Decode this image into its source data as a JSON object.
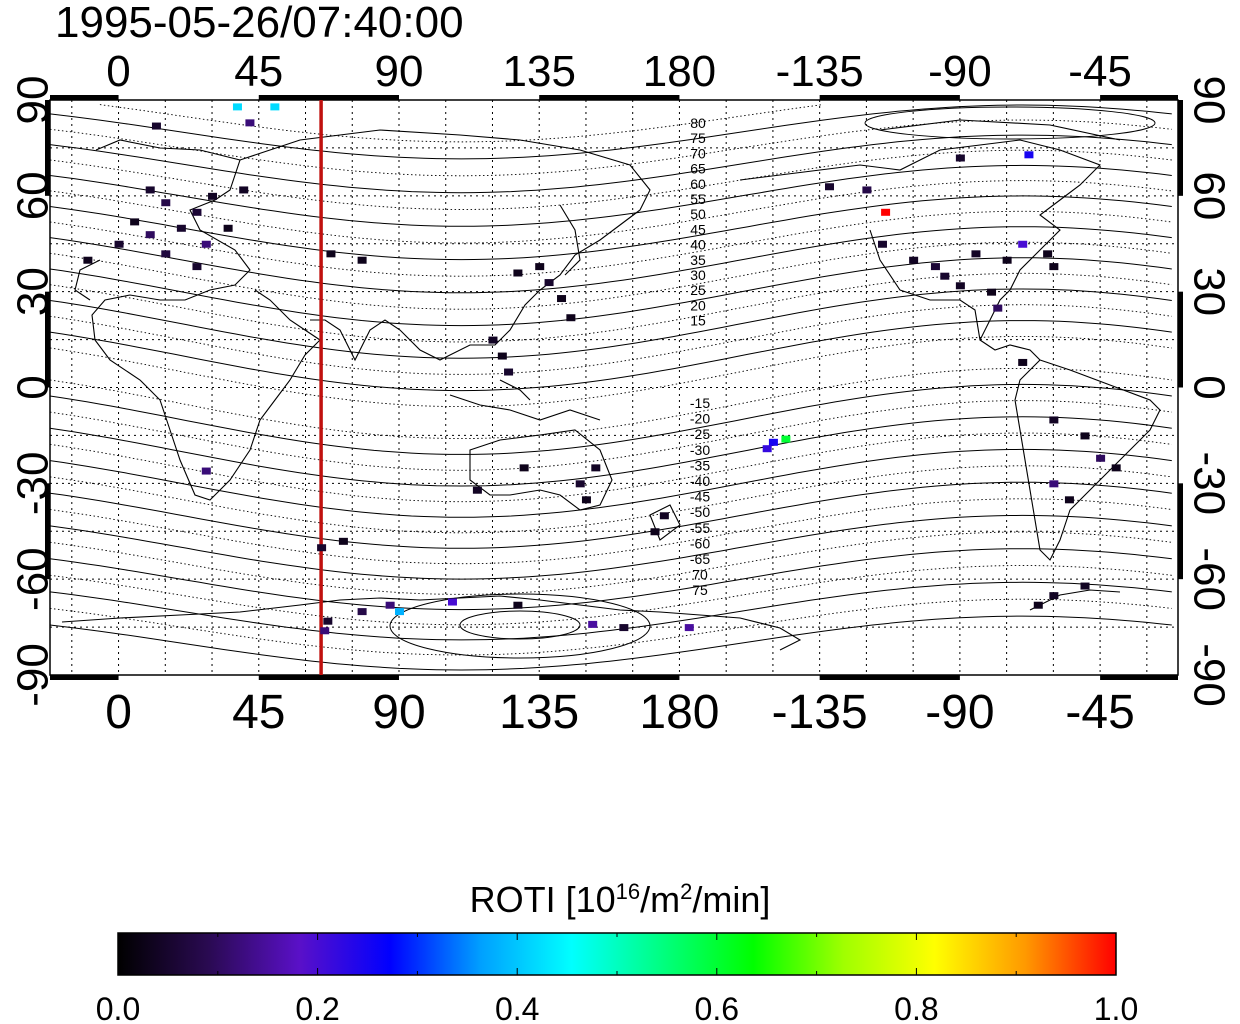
{
  "title": "1995-05-26/07:40:00",
  "map": {
    "lon_ticks_labels": [
      "0",
      "45",
      "90",
      "135",
      "180",
      "-135",
      "-90",
      "-45"
    ],
    "lon_ticks_values": [
      0,
      45,
      90,
      135,
      180,
      225,
      270,
      315
    ],
    "lat_ticks_labels": [
      "90",
      "60",
      "30",
      "0",
      "-30",
      "-60",
      "-90"
    ],
    "lat_ticks_values": [
      90,
      60,
      30,
      0,
      -30,
      -60,
      -90
    ],
    "lon_range": [
      -22,
      340
    ],
    "lat_range": [
      -90,
      90
    ],
    "terminator_longitude": 65,
    "terminator_color": "#c0100e",
    "contour_labels_north": [
      "80",
      "75",
      "70",
      "65",
      "60",
      "55",
      "50",
      "45",
      "40",
      "35",
      "30",
      "25",
      "20",
      "15"
    ],
    "contour_labels_south": [
      "-15",
      "-20",
      "-25",
      "-30",
      "-35",
      "-40",
      "-45",
      "-50",
      "-55",
      "-60",
      "-65",
      "70",
      "75"
    ],
    "grid": true
  },
  "colorbar": {
    "label_main": "ROTI  [10",
    "label_sup1": "16",
    "label_mid": "/m",
    "label_sup2": "2",
    "label_end": "/min]",
    "tick_labels": [
      "0.0",
      "0.2",
      "0.4",
      "0.6",
      "0.8",
      "1.0"
    ],
    "range": [
      0,
      1
    ],
    "colormap": [
      "#000000",
      "#2a0a52",
      "#5a10c8",
      "#0000ff",
      "#00a0ff",
      "#00ffff",
      "#00ff80",
      "#00ff00",
      "#a0ff00",
      "#ffff00",
      "#ff9900",
      "#ff0000"
    ]
  },
  "chart_data": {
    "type": "heatmap",
    "title": "1995-05-26/07:40:00",
    "xlabel": "",
    "ylabel": "",
    "xlim": [
      -22,
      340
    ],
    "ylim": [
      -90,
      90
    ],
    "points": [
      {
        "lon": 12,
        "lat": 82,
        "v": 0.05
      },
      {
        "lon": 42,
        "lat": 83,
        "v": 0.12
      },
      {
        "lon": 38,
        "lat": 88,
        "v": 0.42
      },
      {
        "lon": 50,
        "lat": 88,
        "v": 0.42
      },
      {
        "lon": 10,
        "lat": 62,
        "v": 0.05
      },
      {
        "lon": 15,
        "lat": 58,
        "v": 0.08
      },
      {
        "lon": 5,
        "lat": 52,
        "v": 0.03
      },
      {
        "lon": 10,
        "lat": 48,
        "v": 0.1
      },
      {
        "lon": 20,
        "lat": 50,
        "v": 0.05
      },
      {
        "lon": 25,
        "lat": 55,
        "v": 0.06
      },
      {
        "lon": 30,
        "lat": 60,
        "v": 0.04
      },
      {
        "lon": 0,
        "lat": 45,
        "v": 0.05
      },
      {
        "lon": 15,
        "lat": 42,
        "v": 0.07
      },
      {
        "lon": 28,
        "lat": 45,
        "v": 0.12
      },
      {
        "lon": 35,
        "lat": 50,
        "v": 0.03
      },
      {
        "lon": -10,
        "lat": 40,
        "v": 0.03
      },
      {
        "lon": 25,
        "lat": 38,
        "v": 0.05
      },
      {
        "lon": 40,
        "lat": 62,
        "v": 0.04
      },
      {
        "lon": 68,
        "lat": 42,
        "v": 0.03
      },
      {
        "lon": 78,
        "lat": 40,
        "v": 0.03
      },
      {
        "lon": 128,
        "lat": 36,
        "v": 0.03
      },
      {
        "lon": 135,
        "lat": 38,
        "v": 0.03
      },
      {
        "lon": 138,
        "lat": 33,
        "v": 0.05
      },
      {
        "lon": 142,
        "lat": 28,
        "v": 0.03
      },
      {
        "lon": 120,
        "lat": 15,
        "v": 0.04
      },
      {
        "lon": 123,
        "lat": 10,
        "v": 0.03
      },
      {
        "lon": 125,
        "lat": 5,
        "v": 0.05
      },
      {
        "lon": 145,
        "lat": 22,
        "v": 0.03
      },
      {
        "lon": 28,
        "lat": -26,
        "v": 0.12
      },
      {
        "lon": 115,
        "lat": -32,
        "v": 0.04
      },
      {
        "lon": 130,
        "lat": -25,
        "v": 0.03
      },
      {
        "lon": 148,
        "lat": -30,
        "v": 0.05
      },
      {
        "lon": 150,
        "lat": -35,
        "v": 0.03
      },
      {
        "lon": 175,
        "lat": -40,
        "v": 0.04
      },
      {
        "lon": 172,
        "lat": -45,
        "v": 0.03
      },
      {
        "lon": 153,
        "lat": -25,
        "v": 0.04
      },
      {
        "lon": 65,
        "lat": -50,
        "v": 0.05
      },
      {
        "lon": 72,
        "lat": -48,
        "v": 0.03
      },
      {
        "lon": 67,
        "lat": -73,
        "v": 0.05
      },
      {
        "lon": 78,
        "lat": -70,
        "v": 0.08
      },
      {
        "lon": 87,
        "lat": -68,
        "v": 0.12
      },
      {
        "lon": 90,
        "lat": -70,
        "v": 0.38
      },
      {
        "lon": 107,
        "lat": -67,
        "v": 0.2
      },
      {
        "lon": 128,
        "lat": -68,
        "v": 0.03
      },
      {
        "lon": 152,
        "lat": -74,
        "v": 0.15
      },
      {
        "lon": 162,
        "lat": -75,
        "v": 0.05
      },
      {
        "lon": 183,
        "lat": -75,
        "v": 0.15
      },
      {
        "lon": 66,
        "lat": -76,
        "v": 0.12
      },
      {
        "lon": 228,
        "lat": 63,
        "v": 0.05
      },
      {
        "lon": 240,
        "lat": 62,
        "v": 0.08
      },
      {
        "lon": 270,
        "lat": 72,
        "v": 0.05
      },
      {
        "lon": 292,
        "lat": 73,
        "v": 0.25
      },
      {
        "lon": 246,
        "lat": 55,
        "v": 1.0
      },
      {
        "lon": 245,
        "lat": 45,
        "v": 0.05
      },
      {
        "lon": 255,
        "lat": 40,
        "v": 0.04
      },
      {
        "lon": 265,
        "lat": 35,
        "v": 0.05
      },
      {
        "lon": 275,
        "lat": 42,
        "v": 0.04
      },
      {
        "lon": 285,
        "lat": 40,
        "v": 0.03
      },
      {
        "lon": 290,
        "lat": 45,
        "v": 0.2
      },
      {
        "lon": 298,
        "lat": 42,
        "v": 0.03
      },
      {
        "lon": 300,
        "lat": 38,
        "v": 0.03
      },
      {
        "lon": 280,
        "lat": 30,
        "v": 0.03
      },
      {
        "lon": 282,
        "lat": 25,
        "v": 0.1
      },
      {
        "lon": 270,
        "lat": 32,
        "v": 0.04
      },
      {
        "lon": 262,
        "lat": 38,
        "v": 0.06
      },
      {
        "lon": 290,
        "lat": 8,
        "v": 0.03
      },
      {
        "lon": 300,
        "lat": -10,
        "v": 0.04
      },
      {
        "lon": 310,
        "lat": -15,
        "v": 0.03
      },
      {
        "lon": 315,
        "lat": -22,
        "v": 0.1
      },
      {
        "lon": 300,
        "lat": -30,
        "v": 0.12
      },
      {
        "lon": 305,
        "lat": -35,
        "v": 0.03
      },
      {
        "lon": 320,
        "lat": -25,
        "v": 0.03
      },
      {
        "lon": 210,
        "lat": -17,
        "v": 0.25
      },
      {
        "lon": 214,
        "lat": -16,
        "v": 0.6
      },
      {
        "lon": 208,
        "lat": -19,
        "v": 0.22
      },
      {
        "lon": 300,
        "lat": -65,
        "v": 0.04
      },
      {
        "lon": 295,
        "lat": -68,
        "v": 0.03
      },
      {
        "lon": 310,
        "lat": -62,
        "v": 0.04
      }
    ]
  }
}
